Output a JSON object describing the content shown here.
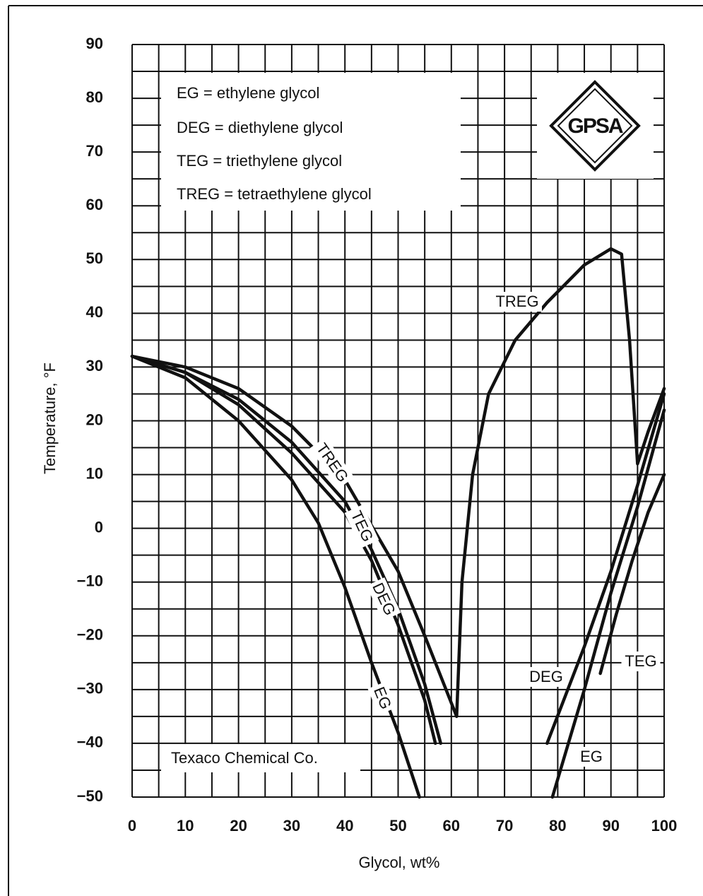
{
  "chart_data": {
    "type": "line",
    "ylabel": "Temperature, °F",
    "xlabel": "Glycol, wt%",
    "xlim": [
      0,
      100
    ],
    "ylim": [
      -50,
      90
    ],
    "xticks": [
      0,
      10,
      20,
      30,
      40,
      50,
      60,
      70,
      80,
      90,
      100
    ],
    "yticks": [
      90,
      80,
      70,
      60,
      50,
      40,
      30,
      20,
      10,
      0,
      {
        "value": -10,
        "label": "−10"
      },
      {
        "value": -20,
        "label": "−20"
      },
      {
        "value": -30,
        "label": "−30"
      },
      {
        "value": -40,
        "label": "−40"
      },
      {
        "value": -50,
        "label": "−50"
      }
    ],
    "xgrid": [
      0,
      5,
      10,
      15,
      20,
      25,
      30,
      35,
      40,
      45,
      50,
      55,
      60,
      65,
      70,
      75,
      80,
      85,
      90,
      95,
      100
    ],
    "ygrid": [
      90,
      85,
      80,
      75,
      70,
      65,
      60,
      55,
      50,
      45,
      40,
      35,
      30,
      25,
      20,
      15,
      10,
      5,
      0,
      -5,
      -10,
      -15,
      -20,
      -25,
      -30,
      -35,
      -40,
      -45,
      -50
    ],
    "grid": true,
    "annotations": [
      "EG = ethylene glycol",
      "DEG = diethylene glycol",
      "TEG = triethylene glycol",
      "TREG = tetraethylene glycol",
      "Texaco Chemical Co."
    ],
    "logo": "GPSA",
    "series": [
      {
        "name": "EG",
        "color": "#111111",
        "x": [
          0,
          10,
          20,
          30,
          35,
          40,
          45,
          50,
          54,
          null,
          79,
          85,
          90,
          95,
          100
        ],
        "values": [
          32,
          28,
          20,
          9,
          1,
          -11,
          -25,
          -38,
          -50,
          null,
          -50,
          -30,
          -12,
          4,
          22
        ]
      },
      {
        "name": "DEG",
        "color": "#111111",
        "x": [
          0,
          10,
          20,
          30,
          40,
          45,
          50,
          55,
          57,
          null,
          78,
          85,
          90,
          95,
          100
        ],
        "values": [
          32,
          29,
          23,
          14,
          3,
          -6,
          -18,
          -32,
          -40,
          null,
          -40,
          -22,
          -8,
          8,
          25
        ]
      },
      {
        "name": "TEG",
        "color": "#111111",
        "x": [
          0,
          10,
          20,
          30,
          40,
          45,
          50,
          55,
          58,
          null,
          88,
          91,
          94,
          97,
          100
        ],
        "values": [
          32,
          29,
          24,
          16,
          5,
          -4,
          -15,
          -29,
          -40,
          null,
          -27,
          -16,
          -6,
          3,
          10
        ]
      },
      {
        "name": "TREG",
        "color": "#111111",
        "x": [
          0,
          10,
          20,
          30,
          40,
          50,
          55,
          59,
          61,
          62,
          64,
          67,
          72,
          78,
          85,
          90,
          92,
          93.5,
          95,
          null,
          95,
          97,
          100
        ],
        "values": [
          32,
          30,
          26,
          19,
          9,
          -8,
          -20,
          -30,
          -35,
          -10,
          10,
          25,
          35,
          42,
          49,
          52,
          51,
          35,
          12,
          null,
          12,
          18,
          26
        ]
      }
    ]
  }
}
